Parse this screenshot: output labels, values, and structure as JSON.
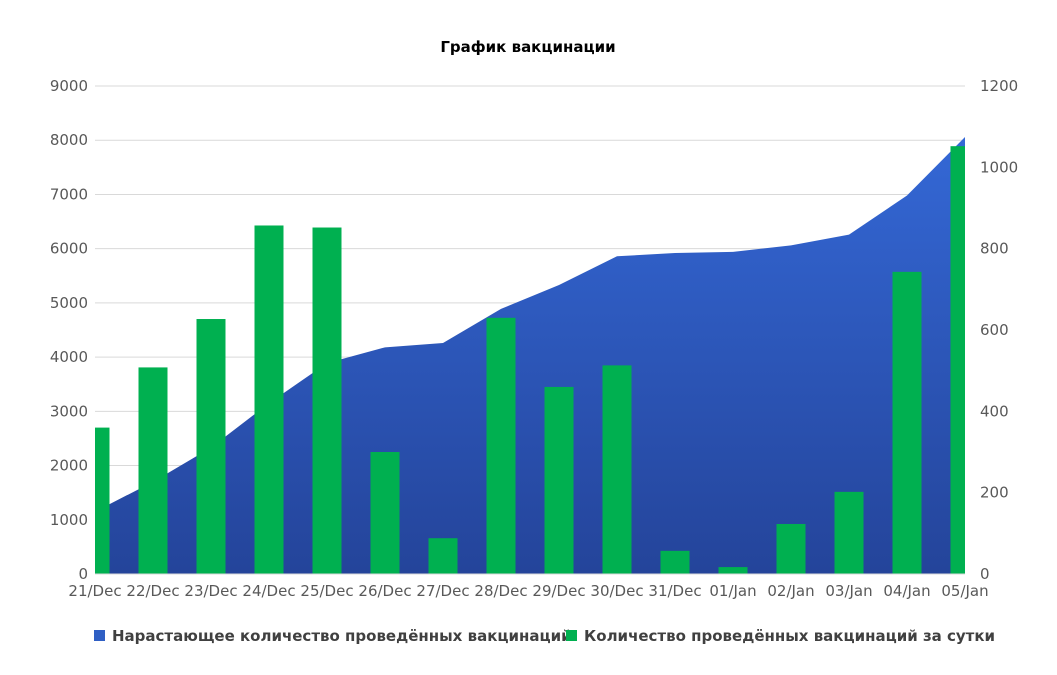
{
  "chart_data": {
    "type": "bar",
    "title": "График вакцинации",
    "categories": [
      "21/Dec",
      "22/Dec",
      "23/Dec",
      "24/Dec",
      "25/Dec",
      "26/Dec",
      "27/Dec",
      "28/Dec",
      "29/Dec",
      "30/Dec",
      "31/Dec",
      "01/Jan",
      "02/Jan",
      "03/Jan",
      "04/Jan",
      "05/Jan"
    ],
    "y_left": {
      "ylim": [
        0,
        9000
      ],
      "ticks": [
        "0",
        "1000",
        "2000",
        "3000",
        "4000",
        "5000",
        "6000",
        "7000",
        "8000",
        "9000"
      ]
    },
    "y_right": {
      "ylim": [
        0,
        1200
      ],
      "ticks": [
        "0",
        "200",
        "400",
        "600",
        "800",
        "1000",
        "1200"
      ]
    },
    "grid": true,
    "legend_position": "bottom",
    "series": [
      {
        "name": "Нарастающее количество проведённых вакцинаций",
        "type": "area",
        "axis": "left",
        "color": "#2f5fc4",
        "values": [
          1150,
          1700,
          2330,
          3150,
          3890,
          4180,
          4260,
          4890,
          5330,
          5860,
          5920,
          5940,
          6060,
          6260,
          6980,
          8060
        ]
      },
      {
        "name": "Количество проведённых вакцинаций за сутки",
        "type": "bar",
        "axis": "right",
        "color": "#00b050",
        "values": [
          360,
          508,
          627,
          857,
          852,
          300,
          88,
          630,
          460,
          513,
          57,
          17,
          123,
          202,
          743,
          1052
        ]
      }
    ]
  }
}
